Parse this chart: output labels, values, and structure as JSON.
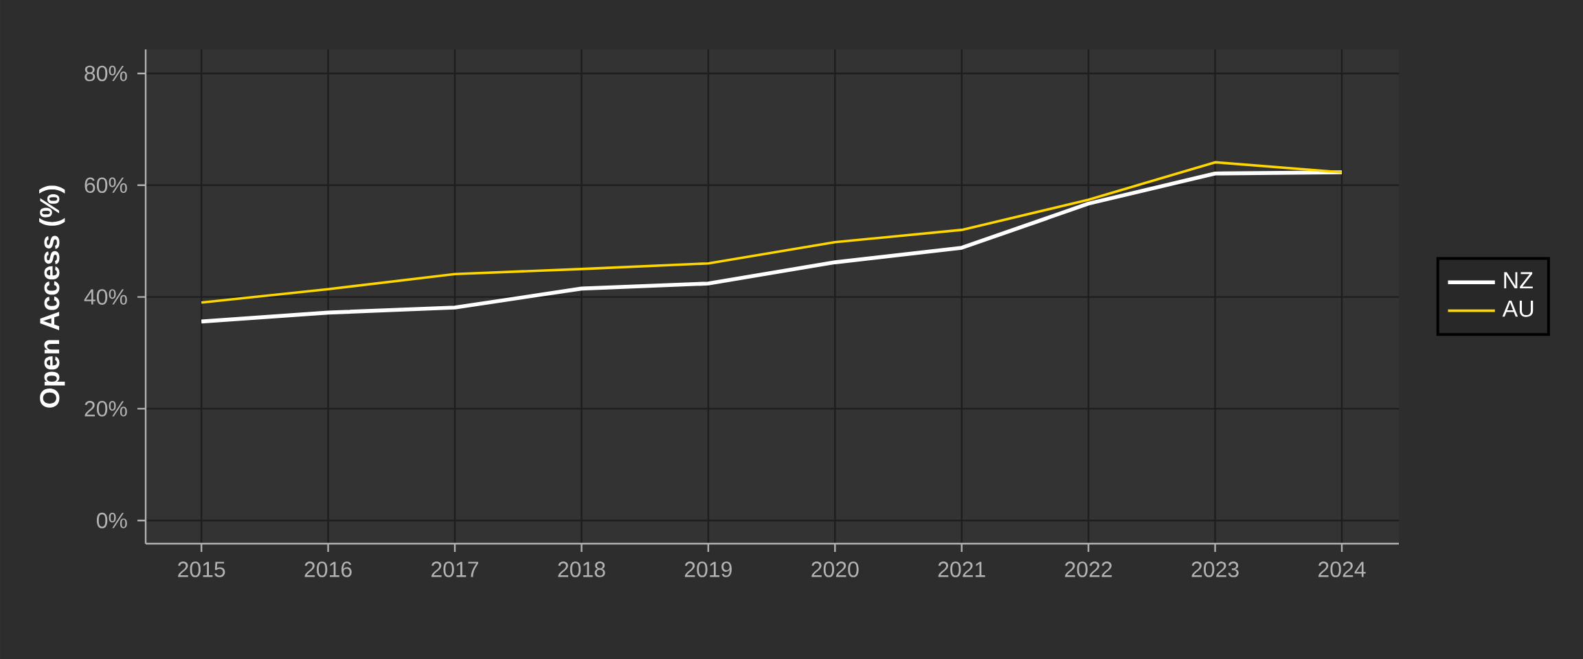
{
  "chart_data": {
    "type": "line",
    "ylabel": "Open Access (%)",
    "x": [
      2015,
      2016,
      2017,
      2018,
      2019,
      2020,
      2021,
      2022,
      2023,
      2024
    ],
    "series": [
      {
        "name": "NZ",
        "color": "#ffffff",
        "values": [
          35.6,
          37.2,
          38.1,
          41.5,
          42.4,
          46.2,
          48.8,
          56.7,
          62.1,
          62.3
        ]
      },
      {
        "name": "AU",
        "color": "#ffd700",
        "values": [
          39.0,
          41.4,
          44.1,
          45.0,
          46.0,
          49.8,
          52.0,
          57.4,
          64.1,
          62.3
        ]
      }
    ],
    "xlim": [
      2014.56,
      2024.45
    ],
    "ylim": [
      -4.15,
      84.3
    ],
    "xticks": [
      2015,
      2016,
      2017,
      2018,
      2019,
      2020,
      2021,
      2022,
      2023,
      2024
    ],
    "yticks": [
      {
        "value": 0,
        "label": "0%"
      },
      {
        "value": 20,
        "label": "20%"
      },
      {
        "value": 40,
        "label": "40%"
      },
      {
        "value": 60,
        "label": "60%"
      },
      {
        "value": 80,
        "label": "80%"
      }
    ],
    "grid": true,
    "legend": "right",
    "marker": "none",
    "line_style": "solid"
  }
}
